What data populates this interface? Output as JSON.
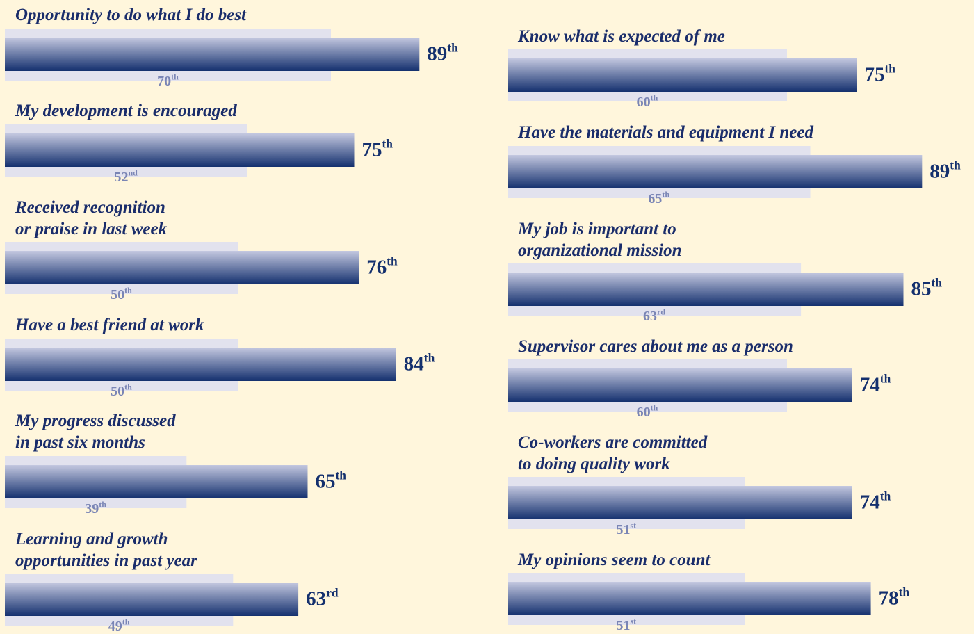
{
  "chart_data": {
    "type": "bar",
    "categories": [
      "Opportunity to do what I do best",
      "My development is encouraged",
      "Received recognition\nor praise in last week",
      "Have a best friend at work",
      "My progress discussed\nin past six months",
      "Learning and growth\nopportunities in past year",
      "Know what is expected of me",
      "Have the materials and equipment I need",
      "My job is important to\norganizational mission",
      "Supervisor cares about me as a person",
      "Co-workers are committed\nto doing quality work",
      "My opinions seem to count"
    ],
    "series": [
      {
        "color": "#14306e",
        "values": [
          89,
          75,
          76,
          84,
          65,
          63,
          75,
          89,
          85,
          74,
          74,
          78
        ],
        "value_labels": [
          "89th",
          "75th",
          "76th",
          "84th",
          "65th",
          "63rd",
          "75th",
          "89th",
          "85th",
          "74th",
          "74th",
          "78th"
        ]
      },
      {
        "color": "#e2e2ee",
        "values": [
          70,
          52,
          50,
          50,
          39,
          49,
          60,
          65,
          63,
          60,
          51,
          51
        ],
        "value_labels": [
          "70th",
          "52nd",
          "50th",
          "50th",
          "39th",
          "49th",
          "60th",
          "65th",
          "63rd",
          "60th",
          "51st",
          "51st"
        ]
      }
    ]
  }
}
